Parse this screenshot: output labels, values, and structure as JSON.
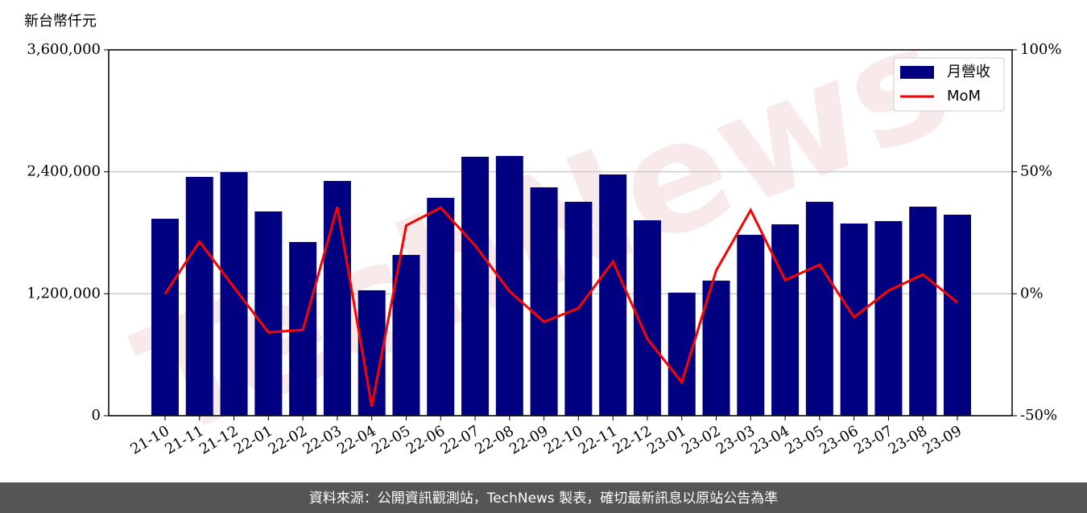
{
  "chart_data": {
    "type": "bar_line",
    "y_label": "新台幣仟元",
    "categories": [
      "21-10",
      "21-11",
      "21-12",
      "22-01",
      "22-02",
      "22-03",
      "22-04",
      "22-05",
      "22-06",
      "22-07",
      "22-08",
      "22-09",
      "22-10",
      "22-11",
      "22-12",
      "23-01",
      "23-02",
      "23-03",
      "23-04",
      "23-05",
      "23-06",
      "23-07",
      "23-08",
      "23-09"
    ],
    "series": [
      {
        "name": "月營收",
        "color": "#000080",
        "values": [
          1938000,
          2350000,
          2397000,
          2010000,
          1709000,
          2310000,
          1234000,
          1582000,
          2144000,
          2548000,
          2556000,
          2247000,
          2105000,
          2374000,
          1923000,
          1211000,
          1329000,
          1780000,
          1883000,
          2105000,
          1891000,
          1915000,
          2057000,
          1978000
        ]
      },
      {
        "name": "MoM",
        "color": "#ff0000",
        "axis": "y2",
        "values": [
          0,
          21.4,
          2.6,
          -15.8,
          -14.8,
          35.6,
          -46.2,
          28,
          35.3,
          19.8,
          1,
          -11.5,
          -5.9,
          13.2,
          -18.5,
          -36.3,
          9.6,
          34.3,
          5.6,
          11.9,
          -9.6,
          1.3,
          7.9,
          -3.6
        ]
      }
    ],
    "ylim": [
      0,
      3600000
    ],
    "yticks": [
      0,
      {
        "value": 1200000,
        "label": "1,200,000"
      },
      {
        "value": 2400000,
        "label": "2,400,000"
      },
      {
        "value": 3600000,
        "label": "3,600,000"
      }
    ],
    "y2lim": [
      -50,
      100
    ],
    "y2ticks": [
      {
        "value": -50,
        "label": "-50%"
      },
      {
        "value": 0,
        "label": "0%"
      },
      {
        "value": 50,
        "label": "50%"
      },
      {
        "value": 100,
        "label": "100%"
      }
    ],
    "grid": true,
    "legend": "upper right",
    "watermark": "TechNews",
    "footer": "資料來源：公開資訊觀測站，TechNews 製表，確切最新訊息以原站公告為準"
  }
}
